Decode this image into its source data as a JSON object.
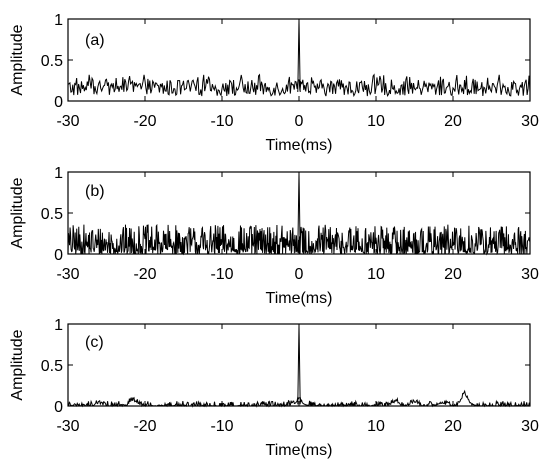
{
  "chart_data": [
    {
      "type": "line",
      "panel_label": "(a)",
      "xlabel": "Time(ms)",
      "ylabel": "Amplitude",
      "xlim": [
        -30,
        30
      ],
      "ylim": [
        0,
        1
      ],
      "xticks": [
        -30,
        -20,
        -10,
        0,
        10,
        20,
        30
      ],
      "yticks": [
        0,
        0.5,
        1
      ],
      "ytick_labels": [
        "0",
        "0.5",
        "1"
      ],
      "grid": false,
      "series": [
        {
          "peak": {
            "x": 0,
            "y": 1.0
          },
          "noise_baseline": 0.06,
          "noise_amplitude": 0.2,
          "noise_max": 0.32
        }
      ]
    },
    {
      "type": "line",
      "panel_label": "(b)",
      "xlabel": "Time(ms)",
      "ylabel": "Amplitude",
      "xlim": [
        -30,
        30
      ],
      "ylim": [
        0,
        1
      ],
      "xticks": [
        -30,
        -20,
        -10,
        0,
        10,
        20,
        30
      ],
      "yticks": [
        0,
        0.5,
        1
      ],
      "ytick_labels": [
        "0",
        "0.5",
        "1"
      ],
      "grid": false,
      "series": [
        {
          "peak": {
            "x": 0,
            "y": 1.0
          },
          "noise_baseline": 0.0,
          "noise_amplitude": 0.2,
          "noise_max": 0.36
        }
      ]
    },
    {
      "type": "line",
      "panel_label": "(c)",
      "xlabel": "Time(ms)",
      "ylabel": "Amplitude",
      "xlim": [
        -30,
        30
      ],
      "ylim": [
        0,
        1
      ],
      "xticks": [
        -30,
        -20,
        -10,
        0,
        10,
        20,
        30
      ],
      "yticks": [
        0,
        0.5,
        1
      ],
      "ytick_labels": [
        "0",
        "0.5",
        "1"
      ],
      "grid": false,
      "series": [
        {
          "peak": {
            "x": 0,
            "y": 1.0
          },
          "noise_baseline": 0.0,
          "noise_amplitude": 0.03,
          "noise_max": 0.06,
          "bumps": [
            {
              "x": -21.5,
              "y": 0.08
            },
            {
              "x": -26,
              "y": 0.03
            },
            {
              "x": 12.5,
              "y": 0.06
            },
            {
              "x": 15,
              "y": 0.05
            },
            {
              "x": 21.5,
              "y": 0.17
            },
            {
              "x": 18.5,
              "y": 0.04
            }
          ]
        }
      ]
    }
  ]
}
